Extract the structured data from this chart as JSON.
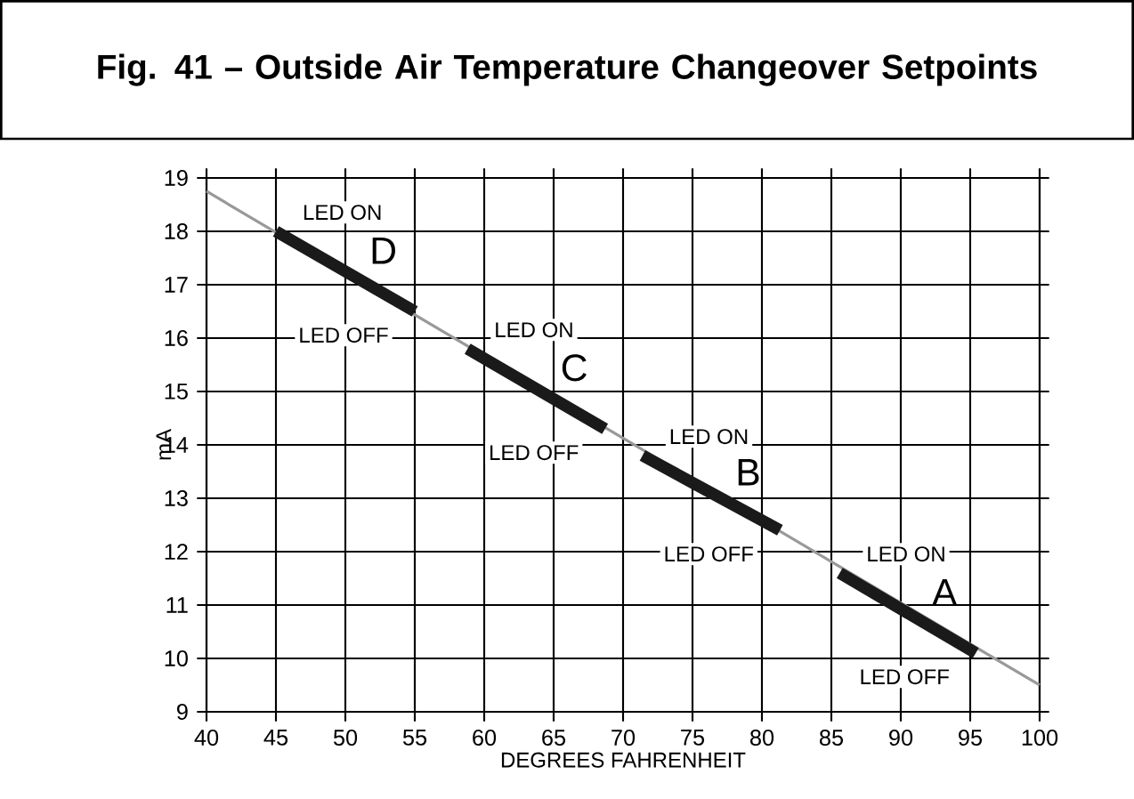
{
  "chart_data": {
    "type": "line",
    "title": "Fig. 41 – Outside Air Temperature Changeover Setpoints",
    "xlabel": "DEGREES FAHRENHEIT",
    "ylabel": "mA",
    "xlim": [
      40,
      100
    ],
    "ylim": [
      9,
      19
    ],
    "xticks": [
      40,
      45,
      50,
      55,
      60,
      65,
      70,
      75,
      80,
      85,
      90,
      95,
      100
    ],
    "yticks": [
      9,
      10,
      11,
      12,
      13,
      14,
      15,
      16,
      17,
      18,
      19
    ],
    "grid": true,
    "marker": "none",
    "line_style": "solid",
    "series": [
      {
        "color": "#999999",
        "x": [
          40,
          100
        ],
        "values": [
          18.75,
          9.5
        ]
      },
      {
        "name": "D",
        "color": "#1a1a1a",
        "x": [
          45,
          55
        ],
        "values": [
          18.0,
          16.5
        ]
      },
      {
        "name": "C",
        "color": "#1a1a1a",
        "x": [
          58.8,
          68.7
        ],
        "values": [
          15.8,
          14.3
        ]
      },
      {
        "name": "B",
        "color": "#1a1a1a",
        "x": [
          71.4,
          81.3
        ],
        "values": [
          13.8,
          12.4
        ]
      },
      {
        "name": "A",
        "color": "#1a1a1a",
        "x": [
          85.6,
          95.4
        ],
        "values": [
          11.6,
          10.1
        ]
      }
    ],
    "annotations": [
      {
        "text": "LED ON",
        "x": 45,
        "y": 18.0
      },
      {
        "text": "LED OFF",
        "x": 55,
        "y": 16.5
      },
      {
        "text": "LED ON",
        "x": 58.8,
        "y": 15.8
      },
      {
        "text": "LED OFF",
        "x": 68.7,
        "y": 14.3
      },
      {
        "text": "LED ON",
        "x": 71.4,
        "y": 13.8
      },
      {
        "text": "LED OFF",
        "x": 81.3,
        "y": 12.4
      },
      {
        "text": "LED ON",
        "x": 85.6,
        "y": 11.6
      },
      {
        "text": "LED OFF",
        "x": 95.4,
        "y": 10.1
      }
    ]
  }
}
